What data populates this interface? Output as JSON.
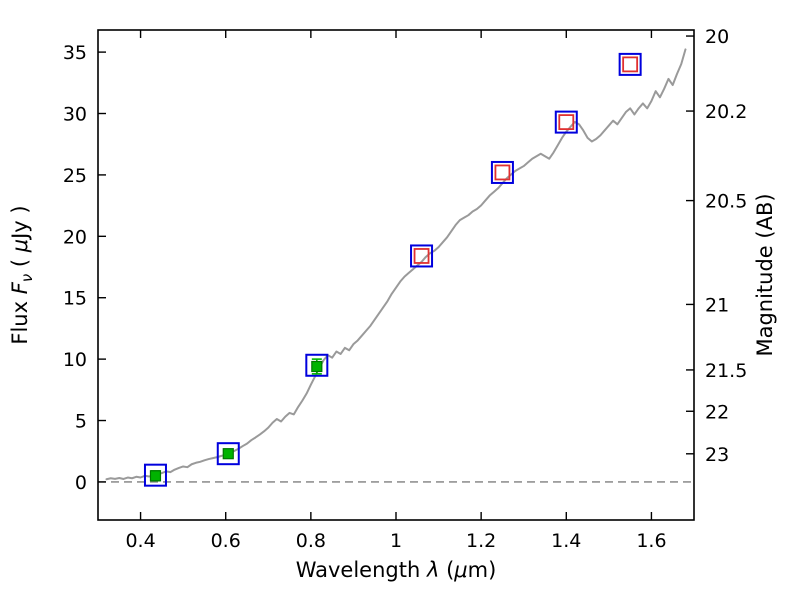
{
  "figure": {
    "kind": "matplotlib-style spectrum plot",
    "background": "#ffffff"
  },
  "chart_data": {
    "type": "line",
    "title": "",
    "xlabel_parts": [
      "Wavelength  ",
      "λ",
      " (",
      "μ",
      "m)"
    ],
    "ylabel_left_parts": [
      "Flux  ",
      "F",
      "ν",
      "  ( ",
      "μ",
      "Jy )"
    ],
    "ylabel_right": "Magnitude (AB)",
    "xlim": [
      0.3,
      1.7
    ],
    "ylim": [
      -3.1,
      36.8
    ],
    "grid": false,
    "legend": "none",
    "xticks": {
      "values": [
        0.4,
        0.6,
        0.8,
        1.0,
        1.2,
        1.4,
        1.6
      ],
      "labels": [
        "0.4",
        "0.6",
        "0.8",
        "1",
        "1.2",
        "1.4",
        "1.6"
      ]
    },
    "yticks_left": {
      "values": [
        0,
        5,
        10,
        15,
        20,
        25,
        30,
        35
      ],
      "labels": [
        "0",
        "5",
        "10",
        "15",
        "20",
        "25",
        "30",
        "35"
      ]
    },
    "yticks_right": {
      "magnitudes": [
        20,
        20.2,
        20.5,
        21,
        21.5,
        22,
        23
      ],
      "labels": [
        "20",
        "20.2",
        "20.5",
        "21",
        "21.5",
        "22",
        "23"
      ],
      "ab_zeropoint_ujy": 23.9
    },
    "zero_line": {
      "y": 0,
      "color": "#7f7f7f",
      "style": "dashed"
    },
    "spectrum": {
      "name": "model-spectrum",
      "color": "#9a9a9a",
      "width": 2,
      "points": [
        [
          0.32,
          0.22
        ],
        [
          0.33,
          0.3
        ],
        [
          0.34,
          0.25
        ],
        [
          0.35,
          0.32
        ],
        [
          0.36,
          0.24
        ],
        [
          0.37,
          0.36
        ],
        [
          0.38,
          0.3
        ],
        [
          0.39,
          0.42
        ],
        [
          0.4,
          0.36
        ],
        [
          0.41,
          0.5
        ],
        [
          0.42,
          0.44
        ],
        [
          0.43,
          0.56
        ],
        [
          0.44,
          0.62
        ],
        [
          0.45,
          0.72
        ],
        [
          0.46,
          0.86
        ],
        [
          0.47,
          0.8
        ],
        [
          0.48,
          1.0
        ],
        [
          0.49,
          1.14
        ],
        [
          0.5,
          1.26
        ],
        [
          0.51,
          1.2
        ],
        [
          0.52,
          1.44
        ],
        [
          0.53,
          1.56
        ],
        [
          0.54,
          1.64
        ],
        [
          0.55,
          1.76
        ],
        [
          0.56,
          1.86
        ],
        [
          0.57,
          1.94
        ],
        [
          0.58,
          2.02
        ],
        [
          0.59,
          2.12
        ],
        [
          0.6,
          2.22
        ],
        [
          0.61,
          2.36
        ],
        [
          0.62,
          2.52
        ],
        [
          0.63,
          2.7
        ],
        [
          0.64,
          2.92
        ],
        [
          0.65,
          3.12
        ],
        [
          0.66,
          3.4
        ],
        [
          0.67,
          3.62
        ],
        [
          0.68,
          3.86
        ],
        [
          0.69,
          4.12
        ],
        [
          0.7,
          4.42
        ],
        [
          0.71,
          4.82
        ],
        [
          0.72,
          5.12
        ],
        [
          0.73,
          4.92
        ],
        [
          0.74,
          5.32
        ],
        [
          0.75,
          5.62
        ],
        [
          0.76,
          5.5
        ],
        [
          0.77,
          6.1
        ],
        [
          0.78,
          6.62
        ],
        [
          0.79,
          7.2
        ],
        [
          0.8,
          7.92
        ],
        [
          0.81,
          8.6
        ],
        [
          0.82,
          9.3
        ],
        [
          0.83,
          9.92
        ],
        [
          0.84,
          10.32
        ],
        [
          0.85,
          10.12
        ],
        [
          0.86,
          10.62
        ],
        [
          0.87,
          10.42
        ],
        [
          0.88,
          10.92
        ],
        [
          0.89,
          10.72
        ],
        [
          0.9,
          11.22
        ],
        [
          0.91,
          11.52
        ],
        [
          0.92,
          11.92
        ],
        [
          0.93,
          12.32
        ],
        [
          0.94,
          12.72
        ],
        [
          0.95,
          13.22
        ],
        [
          0.96,
          13.72
        ],
        [
          0.97,
          14.22
        ],
        [
          0.98,
          14.72
        ],
        [
          0.99,
          15.32
        ],
        [
          1.0,
          15.82
        ],
        [
          1.01,
          16.32
        ],
        [
          1.02,
          16.72
        ],
        [
          1.03,
          17.02
        ],
        [
          1.04,
          17.32
        ],
        [
          1.05,
          17.62
        ],
        [
          1.06,
          17.92
        ],
        [
          1.07,
          18.32
        ],
        [
          1.08,
          18.62
        ],
        [
          1.09,
          18.82
        ],
        [
          1.1,
          19.12
        ],
        [
          1.11,
          19.52
        ],
        [
          1.12,
          19.92
        ],
        [
          1.13,
          20.42
        ],
        [
          1.14,
          20.92
        ],
        [
          1.15,
          21.32
        ],
        [
          1.16,
          21.52
        ],
        [
          1.17,
          21.72
        ],
        [
          1.18,
          22.02
        ],
        [
          1.19,
          22.22
        ],
        [
          1.2,
          22.52
        ],
        [
          1.21,
          22.92
        ],
        [
          1.22,
          23.32
        ],
        [
          1.23,
          23.62
        ],
        [
          1.24,
          23.92
        ],
        [
          1.25,
          24.32
        ],
        [
          1.26,
          24.72
        ],
        [
          1.27,
          25.02
        ],
        [
          1.28,
          25.32
        ],
        [
          1.29,
          25.52
        ],
        [
          1.3,
          25.72
        ],
        [
          1.31,
          26.02
        ],
        [
          1.32,
          26.32
        ],
        [
          1.33,
          26.52
        ],
        [
          1.34,
          26.72
        ],
        [
          1.35,
          26.52
        ],
        [
          1.36,
          26.32
        ],
        [
          1.37,
          26.82
        ],
        [
          1.38,
          27.42
        ],
        [
          1.39,
          28.02
        ],
        [
          1.4,
          28.52
        ],
        [
          1.41,
          28.92
        ],
        [
          1.42,
          29.32
        ],
        [
          1.43,
          29.12
        ],
        [
          1.44,
          28.62
        ],
        [
          1.45,
          28.02
        ],
        [
          1.46,
          27.72
        ],
        [
          1.47,
          27.92
        ],
        [
          1.48,
          28.22
        ],
        [
          1.49,
          28.62
        ],
        [
          1.5,
          29.02
        ],
        [
          1.51,
          29.42
        ],
        [
          1.52,
          29.12
        ],
        [
          1.53,
          29.62
        ],
        [
          1.54,
          30.12
        ],
        [
          1.55,
          30.42
        ],
        [
          1.56,
          29.92
        ],
        [
          1.57,
          30.42
        ],
        [
          1.58,
          30.82
        ],
        [
          1.59,
          30.42
        ],
        [
          1.6,
          31.02
        ],
        [
          1.61,
          31.82
        ],
        [
          1.62,
          31.32
        ],
        [
          1.63,
          32.02
        ],
        [
          1.64,
          32.82
        ],
        [
          1.65,
          32.32
        ],
        [
          1.66,
          33.22
        ],
        [
          1.67,
          34.02
        ],
        [
          1.68,
          35.22
        ]
      ]
    },
    "photometry": [
      {
        "name": "model-photometry",
        "marker": "open-square",
        "color": "#0000dd",
        "size": 21,
        "stroke": 2,
        "x": [
          0.435,
          0.606,
          0.814,
          1.06,
          1.25,
          1.4,
          1.55
        ],
        "y": [
          0.55,
          2.3,
          9.5,
          18.4,
          25.2,
          29.3,
          34.0
        ]
      },
      {
        "name": "observed-infrared-photometry",
        "marker": "open-square",
        "color": "#e03030",
        "size": 14,
        "stroke": 1.8,
        "x": [
          1.06,
          1.25,
          1.4,
          1.55
        ],
        "y": [
          18.4,
          25.2,
          29.3,
          34.0
        ]
      },
      {
        "name": "observed-optical-photometry",
        "marker": "filled-square",
        "color": "#00b300",
        "edge": "#007700",
        "size": 10,
        "stroke": 1.2,
        "x": [
          0.435,
          0.606,
          0.814
        ],
        "y": [
          0.5,
          2.3,
          9.4
        ],
        "yerr": [
          0.4,
          0.3,
          0.6
        ]
      }
    ]
  }
}
